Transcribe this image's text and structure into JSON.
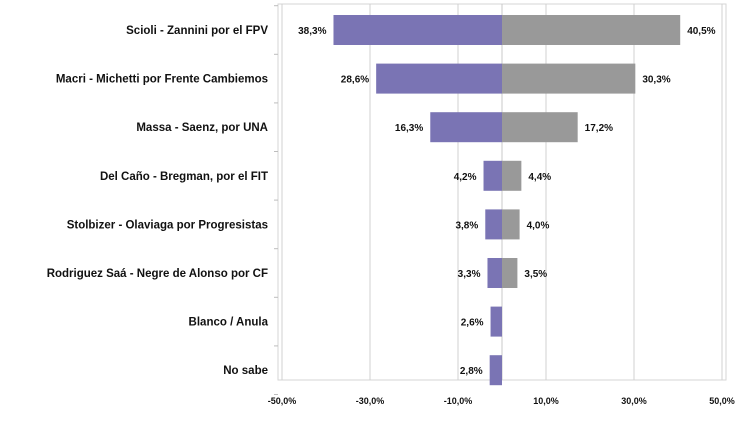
{
  "chart_data": {
    "type": "bar",
    "orientation": "horizontal",
    "layout": "diverging",
    "categories": [
      "Scioli - Zannini por el FPV",
      "Macri - Michetti por Frente Cambiemos",
      "Massa - Saenz, por UNA",
      "Del Caño - Bregman, por el FIT",
      "Stolbizer - Olaviaga por Progresistas",
      "Rodriguez Saá - Negre de Alonso por CF",
      "Blanco / Anula",
      "No sabe"
    ],
    "series": [
      {
        "color": "#7a74b4",
        "side": "left",
        "values": [
          38.3,
          28.6,
          16.3,
          4.2,
          3.8,
          3.3,
          2.6,
          2.8
        ],
        "labels": [
          "38,3%",
          "28,6%",
          "16,3%",
          "4,2%",
          "3,8%",
          "3,3%",
          "2,6%",
          "2,8%"
        ]
      },
      {
        "color": "#999999",
        "side": "right",
        "values": [
          40.5,
          30.3,
          17.2,
          4.4,
          4.0,
          3.5,
          null,
          null
        ],
        "labels": [
          "40,5%",
          "30,3%",
          "17,2%",
          "4,4%",
          "4,0%",
          "3,5%",
          null,
          null
        ]
      }
    ],
    "xlim": [
      -50,
      50
    ],
    "ticks": [
      -50,
      -30,
      -10,
      10,
      30,
      50
    ],
    "tick_labels": [
      "-50,0%",
      "-30,0%",
      "-10,0%",
      "10,0%",
      "30,0%",
      "50,0%"
    ],
    "grid": true,
    "title": "",
    "xlabel": "",
    "ylabel": ""
  }
}
